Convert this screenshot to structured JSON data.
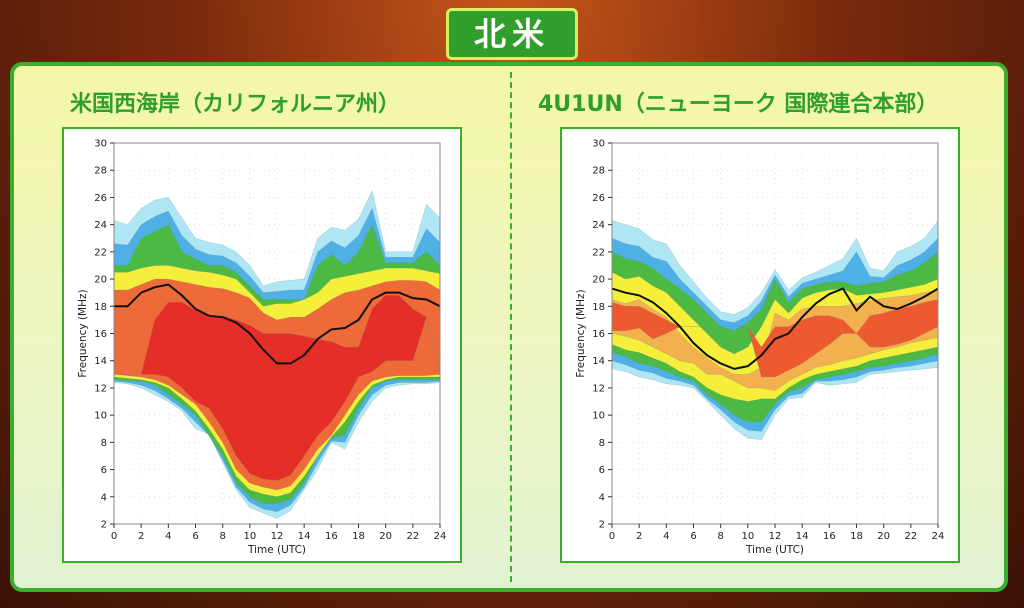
{
  "section_title": "北米",
  "colors": {
    "accent": "#2f9e2a",
    "line": "#111111"
  },
  "chart_data": [
    {
      "type": "contour",
      "title": "米国西海岸（カリフォルニア州）",
      "xlabel": "Time (UTC)",
      "ylabel": "Frequency (MHz)",
      "xlim": [
        0,
        24
      ],
      "ylim": [
        2,
        30
      ],
      "xticks": [
        0,
        2,
        4,
        6,
        8,
        10,
        12,
        14,
        16,
        18,
        20,
        22,
        24
      ],
      "yticks": [
        2,
        4,
        6,
        8,
        10,
        12,
        14,
        16,
        18,
        20,
        22,
        24,
        26,
        28,
        30
      ],
      "grid": true,
      "x": [
        0,
        1,
        2,
        3,
        4,
        5,
        6,
        7,
        8,
        9,
        10,
        11,
        12,
        13,
        14,
        15,
        16,
        17,
        18,
        19,
        20,
        21,
        22,
        23,
        24
      ],
      "muf_line": [
        18,
        18,
        19,
        19.4,
        19.6,
        18.8,
        17.8,
        17.3,
        17.2,
        16.8,
        16,
        14.8,
        13.8,
        13.8,
        14.4,
        15.6,
        16.3,
        16.4,
        17,
        18.5,
        19,
        19,
        18.6,
        18.5,
        18
      ],
      "bands": [
        {
          "color": "#aee6f4",
          "upper": [
            24.3,
            24,
            25.2,
            25.8,
            26,
            24.5,
            23,
            22.7,
            22.5,
            22,
            21,
            19.5,
            19.8,
            19.9,
            20,
            23,
            23.8,
            23.6,
            24.4,
            26.5,
            22,
            22,
            22,
            25.5,
            24.5
          ],
          "lower": [
            12.4,
            12.3,
            12,
            11.5,
            11,
            10.3,
            9,
            8.6,
            6.5,
            4.5,
            3.2,
            2.8,
            2.4,
            3,
            4.5,
            6,
            8,
            7.5,
            9.5,
            11,
            12,
            12.2,
            12.3,
            12.3,
            12.4
          ]
        },
        {
          "color": "#4fb0e6",
          "upper": [
            22.6,
            22.5,
            24,
            24.6,
            25,
            23.2,
            22.2,
            21.8,
            21.7,
            21.2,
            20.2,
            19,
            19.1,
            19.2,
            19.2,
            22,
            22.8,
            22.3,
            23.2,
            25.2,
            21.6,
            21.6,
            21.6,
            23.7,
            22.7
          ],
          "lower": [
            12.5,
            12.4,
            12.2,
            11.8,
            11.2,
            10.5,
            9.5,
            8.5,
            6.7,
            4.7,
            3.6,
            3.1,
            2.9,
            3.4,
            4.7,
            6.5,
            8.1,
            8,
            10,
            11.5,
            12.2,
            12.4,
            12.4,
            12.4,
            12.5
          ]
        },
        {
          "color": "#4cba42",
          "upper": [
            21,
            21,
            23,
            23.5,
            24,
            22,
            21.5,
            21,
            21,
            20.5,
            19.5,
            18.5,
            18.5,
            18.5,
            18.5,
            21,
            21.8,
            21,
            22,
            24,
            21.2,
            21.2,
            21.2,
            22,
            21
          ],
          "lower": [
            12.6,
            12.5,
            12.5,
            12.2,
            11.5,
            10.8,
            10,
            8.5,
            7,
            5,
            4,
            3.5,
            3.5,
            3.8,
            5,
            7,
            8.3,
            8.5,
            10.5,
            12,
            12.5,
            12.6,
            12.6,
            12.6,
            12.6
          ]
        },
        {
          "color": "#f5ee3a",
          "upper": [
            20.5,
            20.5,
            20.8,
            21,
            21,
            20.8,
            20.6,
            20.5,
            20.3,
            20,
            19,
            18,
            18.2,
            18.2,
            18.5,
            19,
            20,
            20.2,
            20.4,
            20.6,
            20.8,
            20.8,
            20.8,
            20.6,
            20.4
          ],
          "lower": [
            12.8,
            12.7,
            12.6,
            12.4,
            12,
            11.2,
            10.3,
            9,
            7.5,
            5.5,
            4.5,
            4.2,
            4,
            4.3,
            5.5,
            7,
            8.4,
            9.5,
            11,
            12.2,
            12.6,
            12.8,
            12.8,
            12.8,
            12.8
          ]
        },
        {
          "color": "#ee6a38",
          "upper": [
            19.2,
            19.2,
            19.6,
            20,
            20,
            19.8,
            19.6,
            19.4,
            19.3,
            19,
            18.6,
            17.5,
            17,
            17.2,
            17.2,
            17.8,
            18.5,
            19,
            19.2,
            19.5,
            19.8,
            19.9,
            19.9,
            19.8,
            19.2
          ],
          "lower": [
            13,
            12.9,
            12.8,
            12.6,
            12.2,
            11.5,
            10.8,
            9.5,
            8,
            6,
            5,
            4.7,
            4.5,
            4.8,
            6,
            7.5,
            8.5,
            10,
            11.5,
            12.5,
            12.8,
            12.9,
            12.9,
            12.9,
            13
          ]
        },
        {
          "color": "#e62e28",
          "upper": [
            13,
            13,
            13,
            17,
            18.3,
            18.3,
            17.7,
            17.3,
            17.3,
            17,
            16.6,
            16,
            16,
            16,
            15.8,
            15.6,
            15.4,
            15,
            15,
            17.8,
            18.8,
            18.8,
            17.8,
            17.2,
            13
          ],
          "lower": [
            13,
            13,
            13,
            13,
            12.8,
            12,
            11,
            10.5,
            9,
            7,
            5.7,
            5.3,
            5.2,
            5.6,
            7,
            8.5,
            9.5,
            11,
            12.8,
            13.2,
            14,
            14,
            14,
            17.2,
            13
          ]
        }
      ]
    },
    {
      "type": "contour",
      "title": "4U1UN（ニューヨーク 国際連合本部）",
      "xlabel": "Time (UTC)",
      "ylabel": "Frequency (MHz)",
      "xlim": [
        0,
        24
      ],
      "ylim": [
        2,
        30
      ],
      "xticks": [
        0,
        2,
        4,
        6,
        8,
        10,
        12,
        14,
        16,
        18,
        20,
        22,
        24
      ],
      "yticks": [
        2,
        4,
        6,
        8,
        10,
        12,
        14,
        16,
        18,
        20,
        22,
        24,
        26,
        28,
        30
      ],
      "grid": true,
      "x": [
        0,
        1,
        2,
        3,
        4,
        5,
        6,
        7,
        8,
        9,
        10,
        11,
        12,
        13,
        14,
        15,
        16,
        17,
        18,
        19,
        20,
        21,
        22,
        23,
        24
      ],
      "muf_line": [
        19.3,
        19,
        18.8,
        18.3,
        17.5,
        16.5,
        15.3,
        14.4,
        13.8,
        13.4,
        13.6,
        14.4,
        15.6,
        16,
        17.2,
        18.2,
        18.9,
        19.3,
        17.7,
        18.7,
        18,
        17.8,
        18.2,
        18.7,
        19.3
      ],
      "bands": [
        {
          "color": "#aee6f4",
          "upper": [
            24.3,
            24,
            23.7,
            22.9,
            22.6,
            21,
            19.8,
            18.6,
            17.6,
            17.4,
            17.9,
            19,
            20.7,
            19.2,
            20.1,
            20.5,
            21,
            21.5,
            23,
            20.8,
            20.6,
            22,
            22.4,
            23,
            24.3
          ],
          "lower": [
            13.4,
            13.2,
            12.8,
            12.6,
            12.3,
            12.2,
            12,
            11,
            10,
            9,
            8.3,
            8.2,
            10,
            11.2,
            11.3,
            12.4,
            12.2,
            12.3,
            12.4,
            13,
            13.1,
            13.2,
            13.3,
            13.4,
            13.5
          ]
        },
        {
          "color": "#4fb0e6",
          "upper": [
            23,
            22.6,
            22.4,
            21.6,
            21.3,
            20,
            19,
            18,
            17,
            16.8,
            17.3,
            18.4,
            20.3,
            18.7,
            19.7,
            20,
            20.3,
            20.6,
            22,
            20.2,
            20.1,
            21,
            21.4,
            22,
            23
          ],
          "lower": [
            14,
            13.7,
            13.3,
            13.1,
            12.7,
            12.5,
            12.2,
            11.2,
            10.4,
            9.5,
            8.9,
            8.8,
            10.4,
            11.4,
            11.6,
            12.5,
            12.5,
            12.6,
            12.8,
            13.2,
            13.3,
            13.5,
            13.6,
            13.8,
            14
          ]
        },
        {
          "color": "#4cba42",
          "upper": [
            22,
            21.5,
            21.3,
            20.8,
            20,
            19.3,
            18.5,
            17.5,
            16.5,
            16.2,
            16.8,
            17.8,
            20,
            18.3,
            19.3,
            19.6,
            19.8,
            19.8,
            19.5,
            19.7,
            19.8,
            20.3,
            20.6,
            21.2,
            22
          ],
          "lower": [
            14.6,
            14.3,
            13.8,
            13.6,
            13.2,
            12.8,
            12.5,
            11.5,
            10.8,
            10,
            9.5,
            9.5,
            10.8,
            11.7,
            12,
            12.6,
            12.8,
            13,
            13.2,
            13.5,
            13.6,
            13.8,
            14,
            14.2,
            14.5
          ]
        },
        {
          "color": "#f5ee3a",
          "upper": [
            20.5,
            20,
            20.2,
            19.5,
            19,
            18,
            17,
            16,
            15,
            14.5,
            15,
            16.5,
            18.5,
            17.5,
            18.6,
            19,
            19.2,
            19.3,
            18.8,
            18.9,
            19,
            19.2,
            19.4,
            19.6,
            20
          ],
          "lower": [
            15.2,
            14.8,
            14.6,
            14.2,
            13.8,
            13.2,
            12.8,
            12,
            11.5,
            11.2,
            11,
            11.2,
            11.2,
            12,
            12.6,
            13,
            13.2,
            13.4,
            13.6,
            14,
            14.2,
            14.4,
            14.6,
            14.8,
            15
          ]
        },
        {
          "color": "#f3b04e",
          "upper": [
            18.5,
            18.2,
            18.5,
            17.8,
            17.2,
            16,
            15,
            14.2,
            13.5,
            13,
            13,
            13.5,
            17.5,
            17,
            17.8,
            18,
            18,
            18,
            18.2,
            18.4,
            18.6,
            18.7,
            18.8,
            19,
            19.2
          ],
          "lower": [
            16,
            15.8,
            15.5,
            15,
            14.5,
            14,
            13.8,
            13,
            13,
            12.5,
            12,
            12,
            11.8,
            12.5,
            13,
            13.5,
            13.7,
            14,
            14.2,
            14.5,
            14.8,
            15,
            15.3,
            15.5,
            15.7
          ]
        },
        {
          "color": "#ee5a30",
          "upper": [
            18.3,
            18,
            18,
            17.5,
            17,
            16.5,
            16.5,
            16.5,
            16.5,
            16.5,
            16.5,
            15,
            16.5,
            16.5,
            17,
            17.3,
            17.3,
            17,
            16,
            17.3,
            17.5,
            17.8,
            18,
            18.3,
            18.5
          ],
          "lower": [
            16.2,
            16.2,
            16.4,
            15.6,
            16,
            16.5,
            16.5,
            16.5,
            16.5,
            16.5,
            16.5,
            12.8,
            12.8,
            13.3,
            13.8,
            14.5,
            15.2,
            16,
            16,
            15,
            15,
            15.2,
            15.5,
            16,
            16.5
          ]
        }
      ]
    }
  ]
}
